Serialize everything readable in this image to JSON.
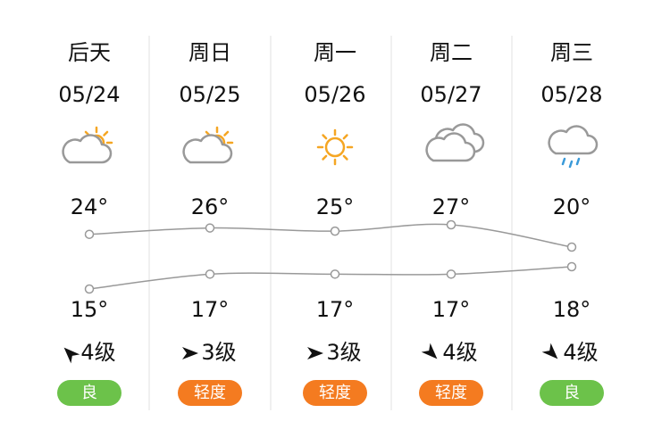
{
  "days": [
    {
      "name": "后天",
      "date": "05/24",
      "high": {
        "value": 24,
        "label": "24°"
      },
      "low": {
        "value": 15,
        "label": "15°"
      },
      "wind": "4级",
      "air": "良",
      "air_color": "#6cc24a"
    },
    {
      "name": "周日",
      "date": "05/25",
      "high": {
        "value": 26,
        "label": "26°"
      },
      "low": {
        "value": 17,
        "label": "17°"
      },
      "wind": "3级",
      "air": "轻度",
      "air_color": "#f47b20"
    },
    {
      "name": "周一",
      "date": "05/26",
      "high": {
        "value": 25,
        "label": "25°"
      },
      "low": {
        "value": 17,
        "label": "17°"
      },
      "wind": "3级",
      "air": "轻度",
      "air_color": "#f47b20"
    },
    {
      "name": "周二",
      "date": "05/27",
      "high": {
        "value": 27,
        "label": "27°"
      },
      "low": {
        "value": 17,
        "label": "17°"
      },
      "wind": "4级",
      "air": "轻度",
      "air_color": "#f47b20"
    },
    {
      "name": "周三",
      "date": "05/28",
      "high": {
        "value": 20,
        "label": "20°"
      },
      "low": {
        "value": 18,
        "label": "18°"
      },
      "wind": "4级",
      "air": "良",
      "air_color": "#6cc24a"
    }
  ]
}
